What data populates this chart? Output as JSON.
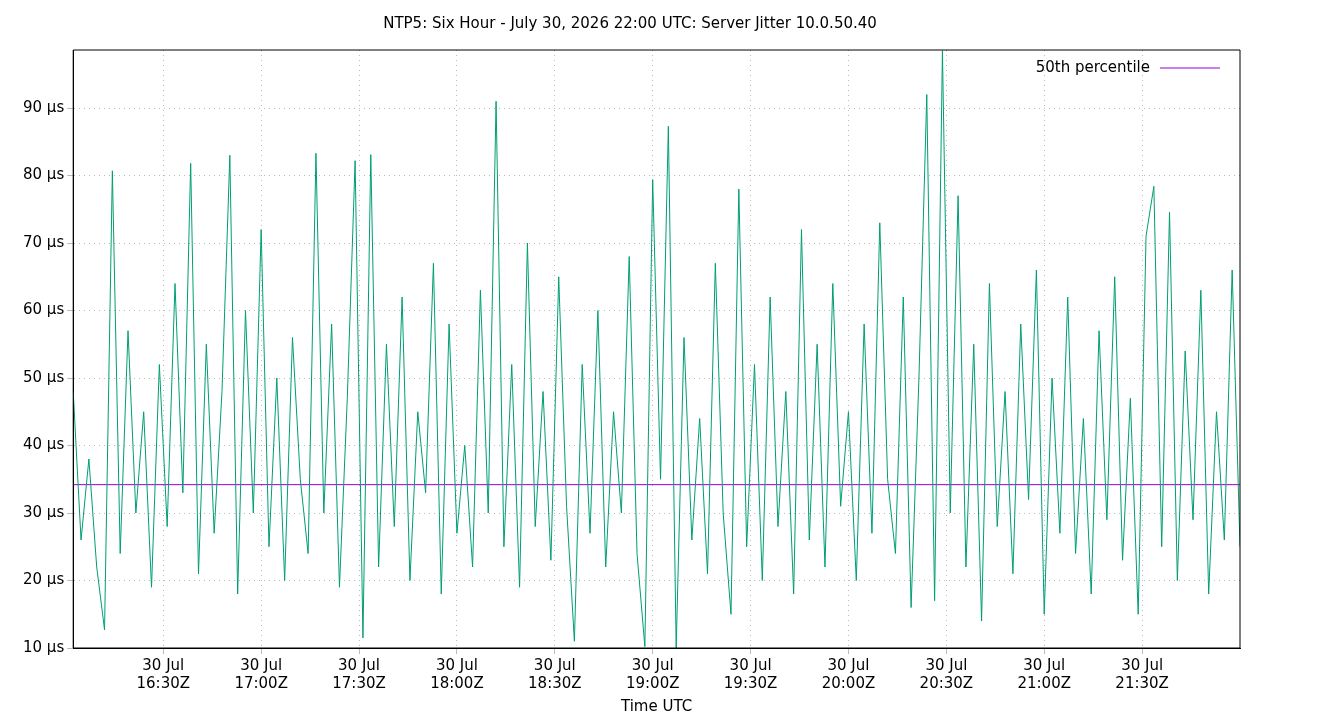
{
  "chart_data": {
    "type": "line",
    "title": "NTP5: Six Hour - July 30, 2026 22:00 UTC: Server Jitter 10.0.50.40",
    "xlabel": "Time UTC",
    "series": [
      {
        "name": "50th percentile",
        "color": "#9400d3",
        "x": [
          "2026-07-30T16:02:24",
          "2026-07-30T22:00"
        ],
        "values": [
          34.2,
          34.2
        ]
      },
      {
        "color": "#009e73",
        "x": [
          "2026-07-30T16:02:24",
          "2026-07-30T16:04:48",
          "2026-07-30T16:07:12",
          "2026-07-30T16:09:36",
          "2026-07-30T16:12",
          "2026-07-30T16:14:24",
          "2026-07-30T16:16:48",
          "2026-07-30T16:19:12",
          "2026-07-30T16:21:36",
          "2026-07-30T16:24",
          "2026-07-30T16:26:24",
          "2026-07-30T16:28:48",
          "2026-07-30T16:31:12",
          "2026-07-30T16:33:36",
          "2026-07-30T16:36",
          "2026-07-30T16:38:24",
          "2026-07-30T16:40:48",
          "2026-07-30T16:43:12",
          "2026-07-30T16:45:36",
          "2026-07-30T16:48",
          "2026-07-30T16:50:24",
          "2026-07-30T16:52:48",
          "2026-07-30T16:55:12",
          "2026-07-30T16:57:36",
          "2026-07-30T17:00",
          "2026-07-30T17:02:24",
          "2026-07-30T17:04:48",
          "2026-07-30T17:07:12",
          "2026-07-30T17:09:36",
          "2026-07-30T17:12",
          "2026-07-30T17:14:24",
          "2026-07-30T17:16:48",
          "2026-07-30T17:19:12",
          "2026-07-30T17:21:36",
          "2026-07-30T17:24",
          "2026-07-30T17:26:24",
          "2026-07-30T17:28:48",
          "2026-07-30T17:31:12",
          "2026-07-30T17:33:36",
          "2026-07-30T17:36",
          "2026-07-30T17:38:24",
          "2026-07-30T17:40:48",
          "2026-07-30T17:43:12",
          "2026-07-30T17:45:36",
          "2026-07-30T17:48",
          "2026-07-30T17:50:24",
          "2026-07-30T17:52:48",
          "2026-07-30T17:55:12",
          "2026-07-30T17:57:36",
          "2026-07-30T18:00",
          "2026-07-30T18:02:24",
          "2026-07-30T18:04:48",
          "2026-07-30T18:07:12",
          "2026-07-30T18:09:36",
          "2026-07-30T18:12",
          "2026-07-30T18:14:24",
          "2026-07-30T18:16:48",
          "2026-07-30T18:19:12",
          "2026-07-30T18:21:36",
          "2026-07-30T18:24",
          "2026-07-30T18:26:24",
          "2026-07-30T18:28:48",
          "2026-07-30T18:31:12",
          "2026-07-30T18:33:36",
          "2026-07-30T18:36",
          "2026-07-30T18:38:24",
          "2026-07-30T18:40:48",
          "2026-07-30T18:43:12",
          "2026-07-30T18:45:36",
          "2026-07-30T18:48",
          "2026-07-30T18:50:24",
          "2026-07-30T18:52:48",
          "2026-07-30T18:55:12",
          "2026-07-30T18:57:36",
          "2026-07-30T19:00",
          "2026-07-30T19:02:24",
          "2026-07-30T19:04:48",
          "2026-07-30T19:07:12",
          "2026-07-30T19:09:36",
          "2026-07-30T19:12",
          "2026-07-30T19:14:24",
          "2026-07-30T19:16:48",
          "2026-07-30T19:19:12",
          "2026-07-30T19:21:36",
          "2026-07-30T19:24",
          "2026-07-30T19:26:24",
          "2026-07-30T19:28:48",
          "2026-07-30T19:31:12",
          "2026-07-30T19:33:36",
          "2026-07-30T19:36",
          "2026-07-30T19:38:24",
          "2026-07-30T19:40:48",
          "2026-07-30T19:43:12",
          "2026-07-30T19:45:36",
          "2026-07-30T19:48",
          "2026-07-30T19:50:24",
          "2026-07-30T19:52:48",
          "2026-07-30T19:55:12",
          "2026-07-30T19:57:36",
          "2026-07-30T20:00",
          "2026-07-30T20:02:24",
          "2026-07-30T20:04:48",
          "2026-07-30T20:07:12",
          "2026-07-30T20:09:36",
          "2026-07-30T20:12",
          "2026-07-30T20:14:24",
          "2026-07-30T20:16:48",
          "2026-07-30T20:19:12",
          "2026-07-30T20:21:36",
          "2026-07-30T20:24",
          "2026-07-30T20:26:24",
          "2026-07-30T20:28:48",
          "2026-07-30T20:31:12",
          "2026-07-30T20:33:36",
          "2026-07-30T20:36",
          "2026-07-30T20:38:24",
          "2026-07-30T20:40:48",
          "2026-07-30T20:43:12",
          "2026-07-30T20:45:36",
          "2026-07-30T20:48",
          "2026-07-30T20:50:24",
          "2026-07-30T20:52:48",
          "2026-07-30T20:55:12",
          "2026-07-30T20:57:36",
          "2026-07-30T21:00",
          "2026-07-30T21:02:24",
          "2026-07-30T21:04:48",
          "2026-07-30T21:07:12",
          "2026-07-30T21:09:36",
          "2026-07-30T21:12",
          "2026-07-30T21:14:24",
          "2026-07-30T21:16:48",
          "2026-07-30T21:19:12",
          "2026-07-30T21:21:36",
          "2026-07-30T21:24",
          "2026-07-30T21:26:24",
          "2026-07-30T21:28:48",
          "2026-07-30T21:31:12",
          "2026-07-30T21:33:36",
          "2026-07-30T21:36",
          "2026-07-30T21:38:24",
          "2026-07-30T21:40:48",
          "2026-07-30T21:43:12",
          "2026-07-30T21:45:36",
          "2026-07-30T21:48",
          "2026-07-30T21:50:24",
          "2026-07-30T21:52:48",
          "2026-07-30T21:55:12",
          "2026-07-30T21:57:36",
          "2026-07-30T22:00"
        ],
        "values": [
          48,
          26,
          38,
          22,
          12.7,
          80.7,
          24,
          57,
          30,
          45,
          19,
          52,
          28,
          64,
          33,
          81.8,
          21,
          55,
          27,
          48,
          83,
          18,
          60,
          30,
          72,
          25,
          50,
          20,
          56,
          35,
          24,
          83.3,
          30,
          58,
          19,
          47,
          82.2,
          11.5,
          83.1,
          22,
          55,
          28,
          62,
          20,
          45,
          33,
          67,
          18,
          58,
          27,
          40,
          22,
          63,
          30,
          91,
          25,
          52,
          19,
          70,
          28,
          48,
          23,
          65,
          31,
          11,
          52,
          27,
          60,
          22,
          45,
          30,
          68,
          24,
          10.2,
          79.4,
          35,
          87.3,
          10,
          56,
          26,
          44,
          21,
          67,
          30,
          15,
          78,
          25,
          52,
          20,
          62,
          28,
          48,
          18,
          72,
          26,
          55,
          22,
          64,
          31,
          45,
          20,
          58,
          27,
          73,
          35,
          24,
          62,
          16,
          50,
          92,
          17,
          98.5,
          30,
          77,
          22,
          55,
          14,
          64,
          28,
          48,
          21,
          58,
          32,
          66,
          15,
          50,
          27,
          62,
          24,
          44,
          18,
          57,
          29,
          65,
          23,
          47,
          15,
          71,
          78.4,
          25,
          74.6,
          20,
          54,
          29,
          63,
          18,
          45,
          26,
          66,
          25
        ]
      }
    ],
    "xlim": [
      "2026-07-30T16:02:24",
      "2026-07-30T22:00"
    ],
    "xticks": [
      {
        "value": "2026-07-30T16:30",
        "label": "30 Jul\n16:30Z"
      },
      {
        "value": "2026-07-30T17:00",
        "label": "30 Jul\n17:00Z"
      },
      {
        "value": "2026-07-30T17:30",
        "label": "30 Jul\n17:30Z"
      },
      {
        "value": "2026-07-30T18:00",
        "label": "30 Jul\n18:00Z"
      },
      {
        "value": "2026-07-30T18:30",
        "label": "30 Jul\n18:30Z"
      },
      {
        "value": "2026-07-30T19:00",
        "label": "30 Jul\n19:00Z"
      },
      {
        "value": "2026-07-30T19:30",
        "label": "30 Jul\n19:30Z"
      },
      {
        "value": "2026-07-30T20:00",
        "label": "30 Jul\n20:00Z"
      },
      {
        "value": "2026-07-30T20:30",
        "label": "30 Jul\n20:30Z"
      },
      {
        "value": "2026-07-30T21:00",
        "label": "30 Jul\n21:00Z"
      },
      {
        "value": "2026-07-30T21:30",
        "label": "30 Jul\n21:30Z"
      }
    ],
    "ylim": [
      10,
      98.6
    ],
    "yticks": [
      {
        "value": 10,
        "label": "10 µs"
      },
      {
        "value": 20,
        "label": "20 µs"
      },
      {
        "value": 30,
        "label": "30 µs"
      },
      {
        "value": 40,
        "label": "40 µs"
      },
      {
        "value": 50,
        "label": "50 µs"
      },
      {
        "value": 60,
        "label": "60 µs"
      },
      {
        "value": 70,
        "label": "70 µs"
      },
      {
        "value": 80,
        "label": "80 µs"
      },
      {
        "value": 90,
        "label": "90 µs"
      }
    ],
    "grid": true,
    "legend": "top right",
    "marker": "none",
    "line_style": "solid"
  }
}
